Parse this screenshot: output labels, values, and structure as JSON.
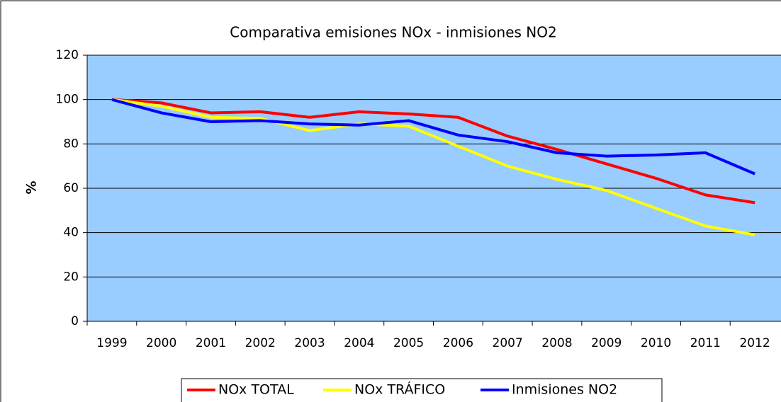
{
  "chart_data": {
    "type": "line",
    "title": "Comparativa emisiones NOx -   inmisiones NO2",
    "ylabel": "%",
    "categories": [
      "1999",
      "2000",
      "2001",
      "2002",
      "2003",
      "2004",
      "2005",
      "2006",
      "2007",
      "2008",
      "2009",
      "2010",
      "2011",
      "2012"
    ],
    "series": [
      {
        "name": "NOx TOTAL",
        "color": "#ff0000",
        "values": [
          100,
          98.5,
          94,
          94.5,
          92,
          94.5,
          93.5,
          92,
          83.5,
          77.5,
          71,
          64.5,
          57,
          53.5
        ]
      },
      {
        "name": "NOx TRÁFICO",
        "color": "#ffff00",
        "values": [
          100,
          97,
          92,
          91.5,
          86,
          89,
          88,
          79,
          70,
          64,
          59,
          51,
          43,
          39
        ]
      },
      {
        "name": "Inmisiones NO2",
        "color": "#0000ff",
        "values": [
          100,
          94,
          90,
          90.5,
          89,
          88.5,
          90.5,
          84,
          81,
          76,
          74.5,
          75,
          76,
          66.5
        ]
      }
    ],
    "ylim": [
      0,
      120
    ],
    "yticks": [
      0,
      20,
      40,
      60,
      80,
      100,
      120
    ],
    "grid": true,
    "background": "#99ccff",
    "legend": "bottom"
  }
}
